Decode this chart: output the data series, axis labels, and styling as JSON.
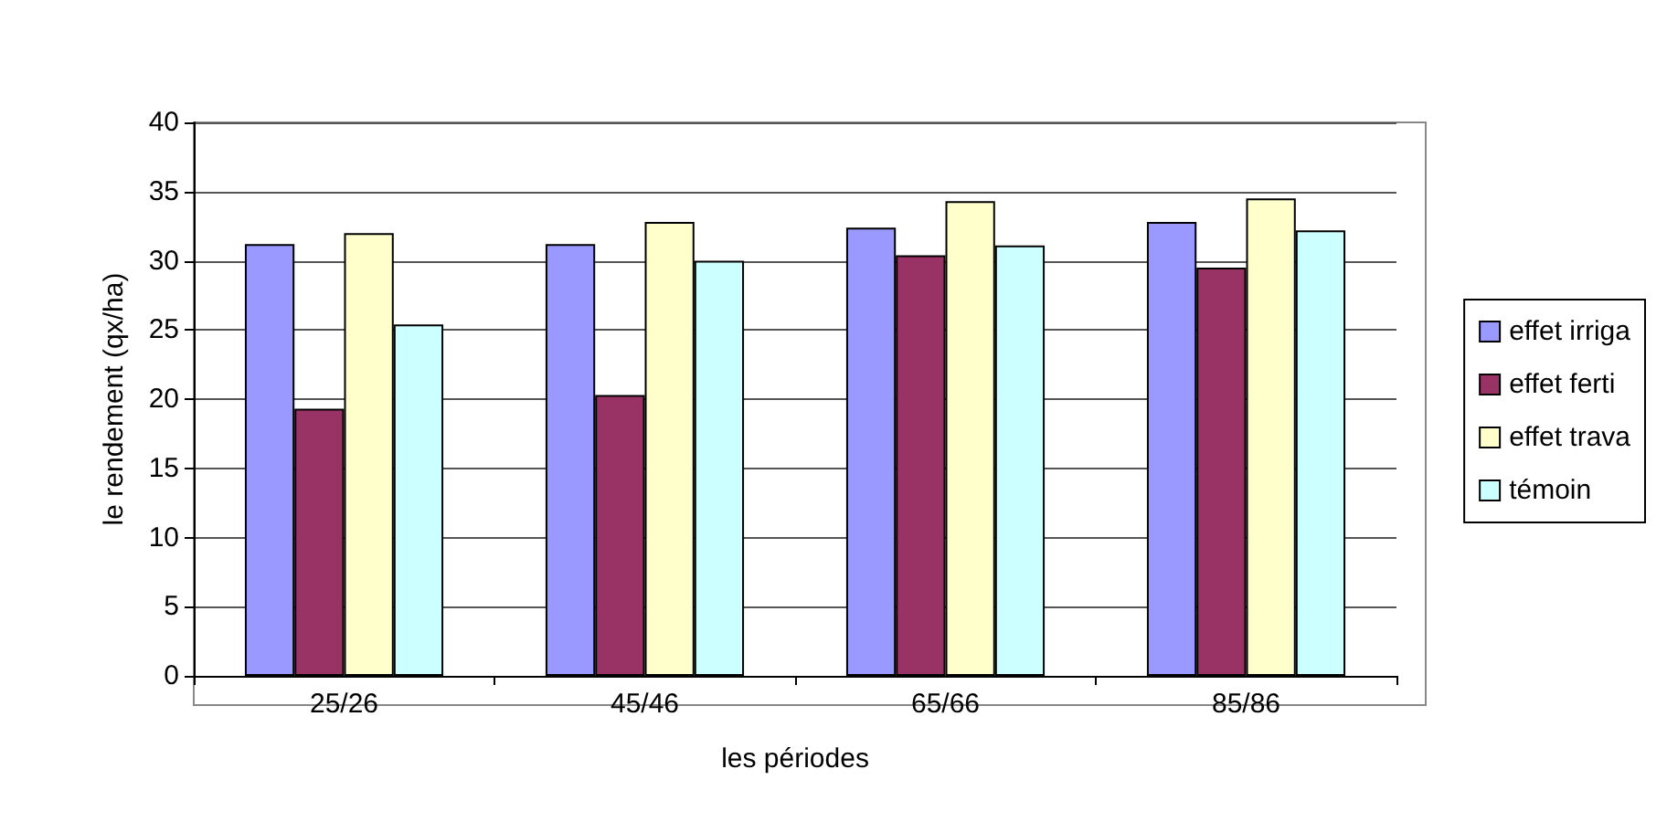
{
  "chart_data": {
    "type": "bar",
    "xlabel": "les périodes",
    "ylabel": "le rendement (qx/ha)",
    "categories": [
      "25/26",
      "45/46",
      "65/66",
      "85/86"
    ],
    "series": [
      {
        "name": "effet irriga",
        "color": "#9999ff",
        "values": [
          31.2,
          31.2,
          32.4,
          32.8
        ]
      },
      {
        "name": "effet ferti",
        "color": "#993366",
        "values": [
          19.3,
          20.3,
          30.4,
          29.5
        ]
      },
      {
        "name": "effet trava",
        "color": "#ffffcc",
        "values": [
          32.0,
          32.8,
          34.3,
          34.5
        ]
      },
      {
        "name": "témoin",
        "color": "#ccffff",
        "values": [
          25.4,
          30.0,
          31.1,
          32.2
        ]
      }
    ],
    "ylim": [
      0,
      40
    ],
    "yticks": [
      0,
      5,
      10,
      15,
      20,
      25,
      30,
      35,
      40
    ],
    "grid": "y",
    "legend": "right"
  }
}
